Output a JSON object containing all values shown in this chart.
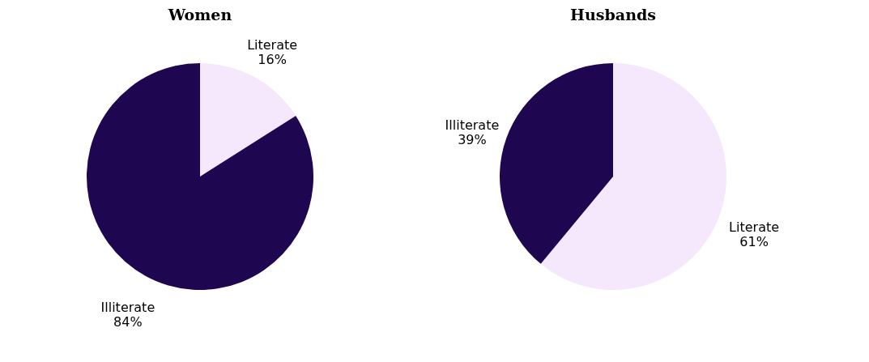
{
  "chart_data": [
    {
      "type": "pie",
      "title": "Women",
      "categories": [
        "Literate",
        "Illiterate"
      ],
      "values": [
        16,
        84
      ],
      "colors": [
        "#f5e8fc",
        "#1e0750"
      ],
      "value_labels": [
        "16%",
        "84%"
      ],
      "legend": false
    },
    {
      "type": "pie",
      "title": "Husbands",
      "categories": [
        "Literate",
        "Illiterate"
      ],
      "values": [
        61,
        39
      ],
      "colors": [
        "#f5e8fc",
        "#1e0750"
      ],
      "value_labels": [
        "61%",
        "39%"
      ],
      "legend": false
    }
  ]
}
